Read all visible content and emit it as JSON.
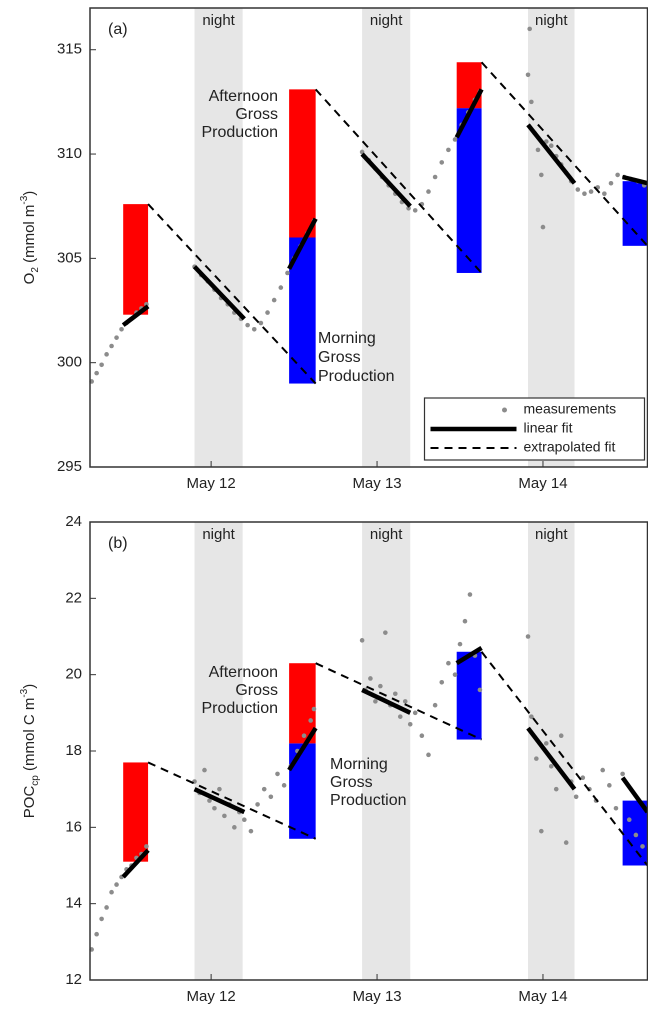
{
  "chart_data": [
    {
      "type": "scatter",
      "panel_label": "(a)",
      "ylabel": [
        {
          "text": "O"
        },
        {
          "text": "2",
          "shift": "sub"
        },
        {
          "text": " (mmol m"
        },
        {
          "text": "-3",
          "shift": "super"
        },
        {
          "text": ")"
        }
      ],
      "xlim": [
        11.27,
        14.63
      ],
      "xticks": [
        {
          "value": 12,
          "label": "May 12"
        },
        {
          "value": 13,
          "label": "May 13"
        },
        {
          "value": 14,
          "label": "May 14"
        }
      ],
      "ylim": [
        295,
        317
      ],
      "yticks": [
        295,
        300,
        305,
        310,
        315
      ],
      "nights": [
        {
          "start": 11.9,
          "end": 12.19,
          "label": "night",
          "color": "#e6e6e6"
        },
        {
          "start": 12.91,
          "end": 13.2,
          "label": "night",
          "color": "#e6e6e6"
        },
        {
          "start": 13.91,
          "end": 14.19,
          "label": "night",
          "color": "#e6e6e6"
        }
      ],
      "bars": [
        {
          "x": [
            11.47,
            11.62
          ],
          "bottom": 302.3,
          "top": 307.6,
          "color": "#ff0000"
        },
        {
          "x": [
            12.47,
            12.63
          ],
          "bottom": 299.0,
          "top": 306.0,
          "color": "#0000ff"
        },
        {
          "x": [
            12.47,
            12.63
          ],
          "bottom": 306.0,
          "top": 313.1,
          "color": "#ff0000"
        },
        {
          "x": [
            13.48,
            13.63
          ],
          "bottom": 304.3,
          "top": 312.2,
          "color": "#0000ff"
        },
        {
          "x": [
            13.48,
            13.63
          ],
          "bottom": 312.2,
          "top": 314.4,
          "color": "#ff0000"
        },
        {
          "x": [
            14.48,
            14.63
          ],
          "bottom": 305.6,
          "top": 308.7,
          "color": "#0000ff"
        }
      ],
      "series": [
        {
          "name": "measurements",
          "color": "#8c8c8c",
          "x": [
            11.28,
            11.31,
            11.34,
            11.37,
            11.4,
            11.43,
            11.46,
            11.49,
            11.52,
            11.55,
            11.58,
            11.61,
            11.9,
            11.94,
            11.98,
            12.02,
            12.06,
            12.1,
            12.14,
            12.18,
            12.22,
            12.26,
            12.3,
            12.34,
            12.38,
            12.42,
            12.46,
            12.5,
            12.54,
            12.58,
            12.62,
            12.91,
            12.95,
            12.99,
            13.03,
            13.07,
            13.11,
            13.15,
            13.19,
            13.23,
            13.27,
            13.31,
            13.35,
            13.39,
            13.43,
            13.47,
            13.51,
            13.55,
            13.59,
            13.62,
            13.91,
            13.92,
            13.93,
            13.95,
            13.97,
            13.99,
            14.0,
            14.02,
            14.05,
            14.08,
            14.11,
            14.14,
            14.17,
            14.21,
            14.25,
            14.29,
            14.33,
            14.37,
            14.41,
            14.45,
            14.49,
            14.53,
            14.57,
            14.61
          ],
          "values": [
            299.1,
            299.5,
            299.9,
            300.4,
            300.8,
            301.2,
            301.6,
            301.9,
            302.1,
            302.4,
            302.6,
            302.8,
            304.6,
            304.2,
            303.9,
            303.5,
            303.1,
            302.8,
            302.4,
            302.1,
            301.8,
            301.6,
            301.9,
            302.4,
            303.0,
            303.6,
            304.3,
            305.0,
            305.6,
            306.2,
            306.8,
            310.1,
            309.7,
            309.3,
            308.9,
            308.5,
            308.1,
            307.7,
            307.4,
            307.3,
            307.6,
            308.2,
            308.9,
            309.6,
            310.2,
            310.7,
            311.4,
            312.0,
            312.6,
            313.0,
            313.8,
            316.0,
            312.5,
            311.0,
            310.2,
            309.0,
            306.5,
            310.6,
            310.4,
            309.9,
            309.5,
            309.1,
            308.7,
            308.3,
            308.1,
            308.2,
            308.4,
            308.1,
            308.6,
            309.0,
            308.9,
            308.8,
            308.7,
            308.5
          ]
        }
      ],
      "linear_fit": {
        "name": "linear fit",
        "color": "#000000",
        "segments": [
          {
            "x": [
              11.47,
              11.62
            ],
            "values": [
              301.8,
              302.7
            ]
          },
          {
            "x": [
              11.9,
              12.2
            ],
            "values": [
              304.6,
              302.1
            ]
          },
          {
            "x": [
              12.47,
              12.63
            ],
            "values": [
              304.5,
              306.9
            ]
          },
          {
            "x": [
              12.91,
              13.2
            ],
            "values": [
              310.0,
              307.5
            ]
          },
          {
            "x": [
              13.48,
              13.63
            ],
            "values": [
              310.8,
              313.1
            ]
          },
          {
            "x": [
              13.91,
              14.19
            ],
            "values": [
              311.4,
              308.6
            ]
          },
          {
            "x": [
              14.48,
              14.63
            ],
            "values": [
              308.9,
              308.6
            ]
          }
        ]
      },
      "extrapolated_fit": {
        "name": "extrapolated fit",
        "color": "#000000",
        "segments": [
          {
            "x": [
              11.62,
              12.63
            ],
            "values": [
              307.6,
              299.0
            ]
          },
          {
            "x": [
              12.63,
              13.63
            ],
            "values": [
              313.1,
              304.3
            ]
          },
          {
            "x": [
              13.63,
              14.63
            ],
            "values": [
              314.4,
              305.6
            ]
          }
        ]
      },
      "annotations": [
        {
          "lines": [
            "Afternoon",
            "Gross",
            "Production"
          ],
          "color": "#9b1515"
        },
        {
          "lines": [
            "Morning",
            "Gross",
            "Production"
          ],
          "color": "#15158f"
        }
      ],
      "legend": "lower right"
    },
    {
      "type": "scatter",
      "panel_label": "(b)",
      "ylabel": [
        {
          "text": "POC"
        },
        {
          "text": "cp",
          "shift": "sub"
        },
        {
          "text": " (mmol C m"
        },
        {
          "text": "-3",
          "shift": "super"
        },
        {
          "text": ")"
        }
      ],
      "xlim": [
        11.27,
        14.63
      ],
      "xticks": [
        {
          "value": 12,
          "label": "May 12"
        },
        {
          "value": 13,
          "label": "May 13"
        },
        {
          "value": 14,
          "label": "May 14"
        }
      ],
      "ylim": [
        12,
        24
      ],
      "yticks": [
        12,
        14,
        16,
        18,
        20,
        22,
        24
      ],
      "nights": [
        {
          "start": 11.9,
          "end": 12.19,
          "label": "night",
          "color": "#e6e6e6"
        },
        {
          "start": 12.91,
          "end": 13.2,
          "label": "night",
          "color": "#e6e6e6"
        },
        {
          "start": 13.91,
          "end": 14.19,
          "label": "night",
          "color": "#e6e6e6"
        }
      ],
      "bars": [
        {
          "x": [
            11.47,
            11.62
          ],
          "bottom": 15.1,
          "top": 17.7,
          "color": "#ff0000"
        },
        {
          "x": [
            12.47,
            12.63
          ],
          "bottom": 15.7,
          "top": 18.2,
          "color": "#0000ff"
        },
        {
          "x": [
            12.47,
            12.63
          ],
          "bottom": 18.2,
          "top": 20.3,
          "color": "#ff0000"
        },
        {
          "x": [
            13.48,
            13.63
          ],
          "bottom": 18.3,
          "top": 20.6,
          "color": "#0000ff"
        },
        {
          "x": [
            14.48,
            14.63
          ],
          "bottom": 15.0,
          "top": 16.7,
          "color": "#0000ff"
        }
      ],
      "series": [
        {
          "color": "#8c8c8c",
          "x": [
            11.28,
            11.31,
            11.34,
            11.37,
            11.4,
            11.43,
            11.46,
            11.49,
            11.52,
            11.55,
            11.58,
            11.61,
            11.9,
            11.93,
            11.96,
            11.99,
            12.02,
            12.05,
            12.08,
            12.11,
            12.14,
            12.17,
            12.2,
            12.24,
            12.28,
            12.32,
            12.36,
            12.4,
            12.44,
            12.48,
            12.52,
            12.56,
            12.6,
            12.62,
            12.91,
            12.93,
            12.96,
            12.99,
            13.02,
            13.05,
            13.08,
            13.11,
            13.14,
            13.17,
            13.2,
            13.23,
            13.27,
            13.31,
            13.35,
            13.39,
            13.43,
            13.47,
            13.5,
            13.53,
            13.56,
            13.59,
            13.62,
            13.91,
            13.93,
            13.96,
            13.99,
            14.02,
            14.05,
            14.08,
            14.11,
            14.14,
            14.17,
            14.2,
            14.24,
            14.28,
            14.32,
            14.36,
            14.4,
            14.44,
            14.48,
            14.52,
            14.56,
            14.6
          ],
          "values": [
            12.8,
            13.2,
            13.6,
            13.9,
            14.3,
            14.5,
            14.7,
            14.9,
            15.0,
            15.2,
            15.3,
            15.5,
            17.2,
            16.9,
            17.5,
            16.7,
            16.5,
            17.0,
            16.3,
            16.6,
            16.0,
            16.4,
            16.2,
            15.9,
            16.6,
            17.0,
            16.8,
            17.4,
            17.1,
            17.6,
            18.0,
            18.4,
            18.8,
            19.1,
            20.9,
            19.6,
            19.9,
            19.3,
            19.7,
            21.1,
            19.2,
            19.5,
            18.9,
            19.3,
            18.7,
            19.0,
            18.4,
            17.9,
            19.2,
            19.8,
            20.3,
            20.0,
            20.8,
            21.4,
            22.1,
            20.5,
            19.6,
            21.0,
            18.9,
            17.8,
            15.9,
            18.2,
            17.6,
            17.0,
            18.4,
            15.6,
            17.2,
            16.8,
            17.3,
            17.0,
            16.7,
            17.5,
            17.1,
            16.5,
            17.4,
            16.2,
            15.8,
            15.5
          ]
        }
      ],
      "linear_fit": {
        "color": "#000000",
        "segments": [
          {
            "x": [
              11.47,
              11.62
            ],
            "values": [
              14.7,
              15.4
            ]
          },
          {
            "x": [
              11.9,
              12.2
            ],
            "values": [
              17.0,
              16.4
            ]
          },
          {
            "x": [
              12.47,
              12.63
            ],
            "values": [
              17.5,
              18.6
            ]
          },
          {
            "x": [
              12.91,
              13.2
            ],
            "values": [
              19.6,
              19.0
            ]
          },
          {
            "x": [
              13.48,
              13.63
            ],
            "values": [
              20.3,
              20.7
            ]
          },
          {
            "x": [
              13.91,
              14.19
            ],
            "values": [
              18.6,
              17.0
            ]
          },
          {
            "x": [
              14.48,
              14.63
            ],
            "values": [
              17.3,
              16.4
            ]
          }
        ]
      },
      "extrapolated_fit": {
        "color": "#000000",
        "segments": [
          {
            "x": [
              11.62,
              12.63
            ],
            "values": [
              17.7,
              15.7
            ]
          },
          {
            "x": [
              12.63,
              13.63
            ],
            "values": [
              20.3,
              18.3
            ]
          },
          {
            "x": [
              13.63,
              14.63
            ],
            "values": [
              20.6,
              15.0
            ]
          }
        ]
      },
      "annotations": [
        {
          "lines": [
            "Afternoon",
            "Gross",
            "Production"
          ],
          "color": "#9b1515"
        },
        {
          "lines": [
            "Morning",
            "Gross",
            "Production"
          ],
          "color": "#15158f"
        }
      ]
    }
  ]
}
